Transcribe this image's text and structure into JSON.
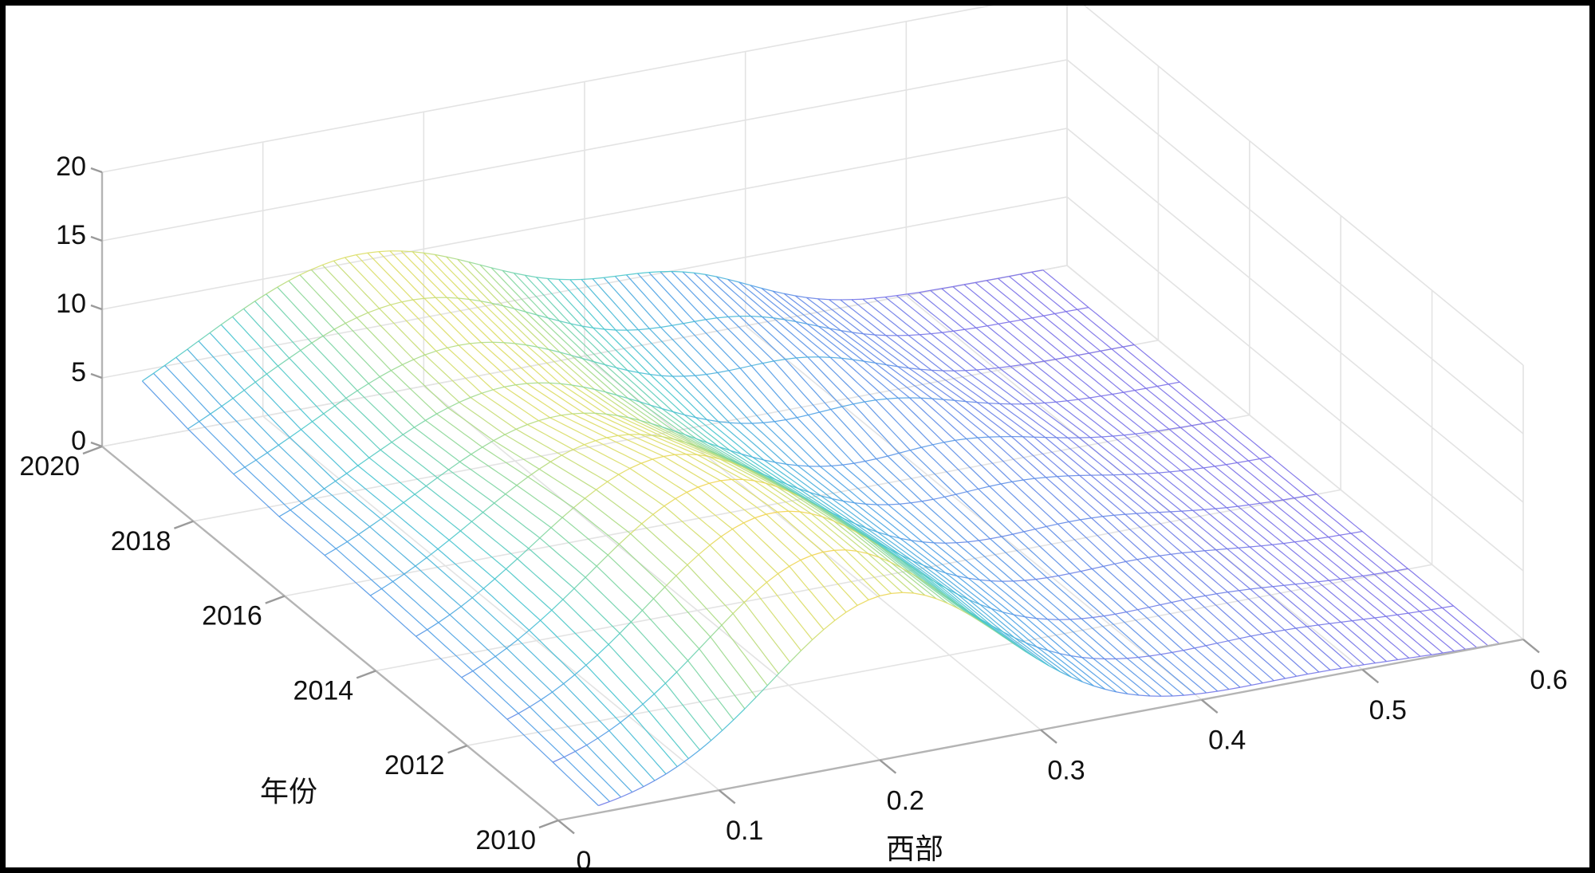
{
  "chart_data": {
    "type": "mesh3d",
    "title": "",
    "xlabel": "西部",
    "ylabel": "年份",
    "zlabel": "",
    "xlim": [
      0,
      0.6
    ],
    "ylim": [
      2010,
      2020
    ],
    "zlim": [
      0,
      20
    ],
    "x_ticks": [
      "0",
      "0.1",
      "0.2",
      "0.3",
      "0.4",
      "0.5",
      "0.6"
    ],
    "y_ticks": [
      "2010",
      "2012",
      "2014",
      "2016",
      "2018",
      "2020"
    ],
    "z_ticks": [
      "0",
      "5",
      "10",
      "15",
      "20"
    ],
    "colormap": [
      "#7b6fe8",
      "#4f9fe6",
      "#45c6cf",
      "#7fd6a0",
      "#d9df6a",
      "#f5d24b"
    ],
    "x_range": [
      0.025,
      0.585
    ],
    "years": [
      2010,
      2011,
      2012,
      2013,
      2014,
      2015,
      2016,
      2017,
      2018,
      2019,
      2020
    ],
    "series": [
      {
        "name": "2010",
        "peaks": [
          [
            0.205,
            12.0,
            0.072
          ],
          [
            0.47,
            0.4,
            0.05
          ]
        ]
      },
      {
        "name": "2011",
        "peaks": [
          [
            0.195,
            12.6,
            0.075
          ],
          [
            0.47,
            0.6,
            0.05
          ]
        ]
      },
      {
        "name": "2012",
        "peaks": [
          [
            0.19,
            12.8,
            0.078
          ],
          [
            0.46,
            0.8,
            0.05
          ]
        ]
      },
      {
        "name": "2013",
        "peaks": [
          [
            0.185,
            12.5,
            0.08
          ],
          [
            0.45,
            1.0,
            0.05
          ]
        ]
      },
      {
        "name": "2014",
        "peaks": [
          [
            0.18,
            11.7,
            0.082
          ],
          [
            0.44,
            1.3,
            0.05
          ]
        ]
      },
      {
        "name": "2015",
        "peaks": [
          [
            0.175,
            10.5,
            0.085
          ],
          [
            0.43,
            1.6,
            0.05
          ]
        ]
      },
      {
        "name": "2016",
        "peaks": [
          [
            0.17,
            9.4,
            0.088
          ],
          [
            0.42,
            2.0,
            0.05
          ]
        ]
      },
      {
        "name": "2017",
        "peaks": [
          [
            0.168,
            8.9,
            0.09
          ],
          [
            0.4,
            2.5,
            0.05
          ]
        ]
      },
      {
        "name": "2018",
        "peaks": [
          [
            0.165,
            9.2,
            0.092
          ],
          [
            0.38,
            3.0,
            0.05
          ]
        ]
      },
      {
        "name": "2019",
        "peaks": [
          [
            0.162,
            9.8,
            0.095
          ],
          [
            0.37,
            3.2,
            0.05
          ]
        ]
      },
      {
        "name": "2020",
        "peaks": [
          [
            0.16,
            10.5,
            0.1
          ],
          [
            0.36,
            3.4,
            0.05
          ]
        ]
      }
    ]
  }
}
